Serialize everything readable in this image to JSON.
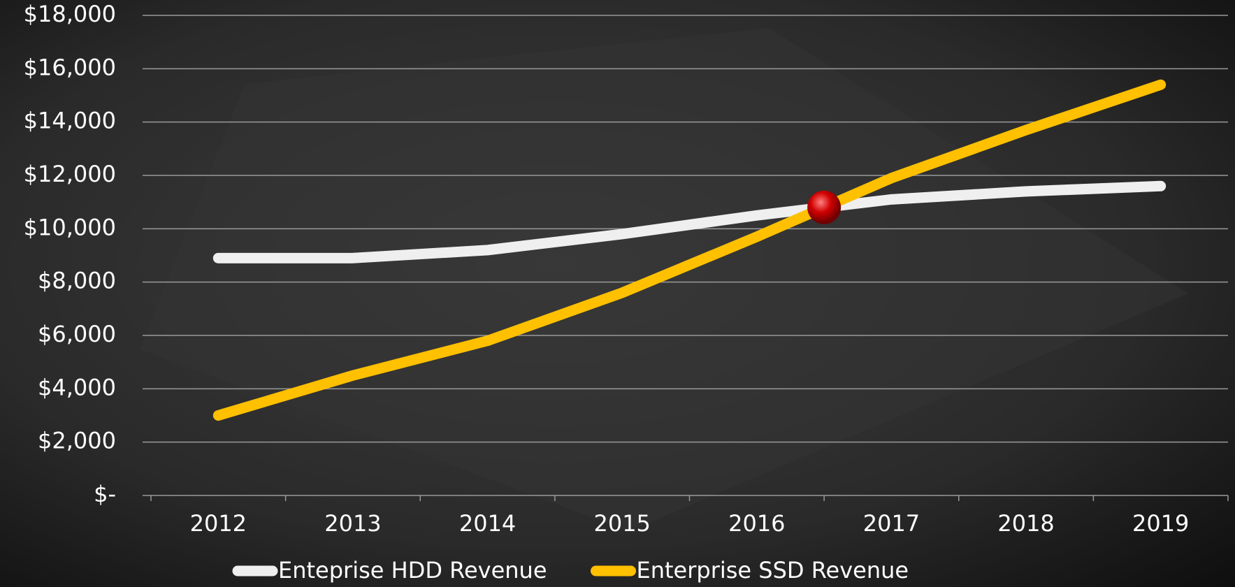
{
  "chart_data": {
    "type": "line",
    "categories": [
      "2012",
      "2013",
      "2014",
      "2015",
      "2016",
      "2017",
      "2018",
      "2019"
    ],
    "series": [
      {
        "name": "Enteprise HDD Revenue",
        "color": "#efefef",
        "values": [
          8900,
          8900,
          9200,
          9800,
          10500,
          11100,
          11400,
          11600
        ]
      },
      {
        "name": "Enterprise SSD Revenue",
        "color": "#ffc000",
        "values": [
          3000,
          4500,
          5800,
          7600,
          9700,
          11900,
          13700,
          15400
        ]
      }
    ],
    "ylim": [
      0,
      18000
    ],
    "yticks": [
      {
        "value": 0,
        "label": "$-"
      },
      {
        "value": 2000,
        "label": "$2,000"
      },
      {
        "value": 4000,
        "label": "$4,000"
      },
      {
        "value": 6000,
        "label": "$6,000"
      },
      {
        "value": 8000,
        "label": "$8,000"
      },
      {
        "value": 10000,
        "label": "$10,000"
      },
      {
        "value": 12000,
        "label": "$12,000"
      },
      {
        "value": 14000,
        "label": "$14,000"
      },
      {
        "value": 16000,
        "label": "$16,000"
      },
      {
        "value": 18000,
        "label": "$18,000"
      }
    ],
    "grid": true,
    "legend": "bottom"
  }
}
